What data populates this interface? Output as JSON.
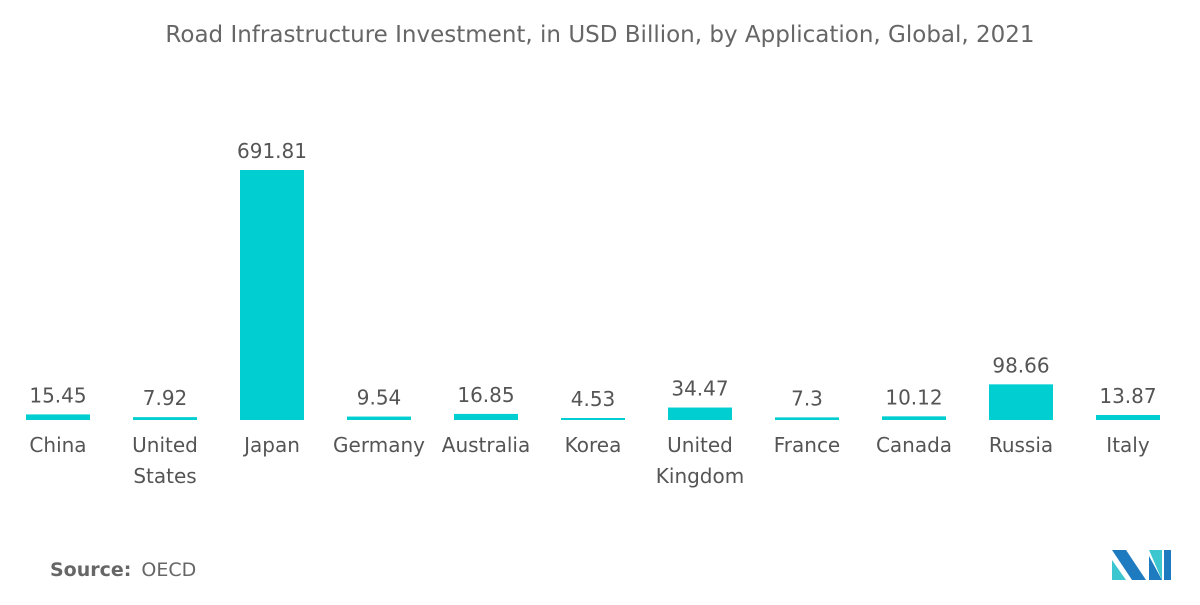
{
  "chart_data": {
    "type": "bar",
    "title": "Road Infrastructure Investment, in USD Billion, by Application, Global, 2021",
    "categories": [
      [
        "China"
      ],
      [
        "United",
        "States"
      ],
      [
        "Japan"
      ],
      [
        "Germany"
      ],
      [
        "Australia"
      ],
      [
        "Korea"
      ],
      [
        "United",
        "Kingdom"
      ],
      [
        "France"
      ],
      [
        "Canada"
      ],
      [
        "Russia"
      ],
      [
        "Italy"
      ]
    ],
    "values": [
      15.45,
      7.92,
      691.81,
      9.54,
      16.85,
      4.53,
      34.47,
      7.3,
      10.12,
      98.66,
      13.87
    ],
    "value_labels": [
      "15.45",
      "7.92",
      "691.81",
      "9.54",
      "16.85",
      "4.53",
      "34.47",
      "7.3",
      "10.12",
      "98.66",
      "13.87"
    ],
    "xlabel": "",
    "ylabel": "",
    "grid": false,
    "bar_color": "#00CED1"
  },
  "source": {
    "label": "Source:",
    "value": "OECD"
  },
  "logo": {
    "text": "MI",
    "colors": [
      "#1E7BC0",
      "#3CC6D0"
    ]
  }
}
